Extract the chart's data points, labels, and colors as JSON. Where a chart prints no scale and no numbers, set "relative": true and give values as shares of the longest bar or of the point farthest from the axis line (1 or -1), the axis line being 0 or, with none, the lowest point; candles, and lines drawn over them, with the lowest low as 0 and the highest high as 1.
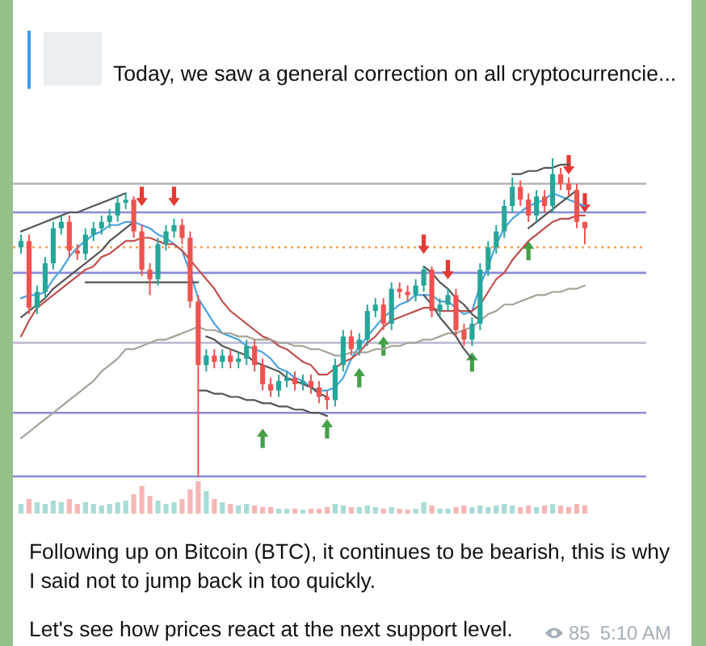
{
  "chart_data": [
    {
      "type": "candlestick",
      "subtitle": "Today, we saw a general correction on all cryptocurrencie...",
      "annotations": [
        "Following up on Bitcoin (BTC), it continues to be bearish, this is why I said not to jump back in too quickly.",
        "Let's see how prices react at the next support level.",
        "85",
        "5:10 AM"
      ],
      "relative": true,
      "categories": [
        null,
        null,
        null,
        null,
        null,
        null,
        null,
        null,
        null,
        null,
        null,
        null,
        null,
        null,
        null,
        null,
        null,
        null,
        null,
        null,
        null,
        null,
        null,
        null,
        null,
        null,
        null,
        null,
        null,
        null,
        null,
        null,
        null,
        null,
        null,
        null,
        null,
        null,
        null,
        null,
        null,
        null,
        null,
        null,
        null,
        null,
        null,
        null,
        null,
        null,
        null,
        null,
        null,
        null,
        null,
        null,
        null,
        null,
        null,
        null,
        null,
        null,
        null,
        null,
        null,
        null,
        null,
        null,
        null,
        null,
        null
      ],
      "ohlc": [
        [
          0.72,
          0.76,
          0.7,
          0.74
        ],
        [
          0.74,
          0.76,
          0.51,
          0.53
        ],
        [
          0.53,
          0.6,
          0.51,
          0.58
        ],
        [
          0.58,
          0.69,
          0.56,
          0.67
        ],
        [
          0.67,
          0.8,
          0.65,
          0.78
        ],
        [
          0.78,
          0.82,
          0.76,
          0.8
        ],
        [
          0.8,
          0.82,
          0.69,
          0.71
        ],
        [
          0.71,
          0.73,
          0.68,
          0.7
        ],
        [
          0.7,
          0.78,
          0.68,
          0.76
        ],
        [
          0.76,
          0.8,
          0.74,
          0.78
        ],
        [
          0.78,
          0.82,
          0.76,
          0.8
        ],
        [
          0.8,
          0.84,
          0.78,
          0.82
        ],
        [
          0.82,
          0.88,
          0.8,
          0.86
        ],
        [
          0.86,
          0.89,
          0.84,
          0.87
        ],
        [
          0.87,
          0.88,
          0.75,
          0.77
        ],
        [
          0.77,
          0.79,
          0.63,
          0.65
        ],
        [
          0.65,
          0.67,
          0.57,
          0.62
        ],
        [
          0.62,
          0.75,
          0.6,
          0.73
        ],
        [
          0.73,
          0.79,
          0.71,
          0.77
        ],
        [
          0.77,
          0.81,
          0.75,
          0.79
        ],
        [
          0.79,
          0.81,
          0.73,
          0.75
        ],
        [
          0.75,
          0.77,
          0.53,
          0.55
        ],
        [
          0.55,
          0.57,
          0.0,
          0.35
        ],
        [
          0.35,
          0.4,
          0.33,
          0.38
        ],
        [
          0.38,
          0.4,
          0.34,
          0.36
        ],
        [
          0.36,
          0.4,
          0.34,
          0.38
        ],
        [
          0.38,
          0.4,
          0.34,
          0.36
        ],
        [
          0.36,
          0.39,
          0.34,
          0.37
        ],
        [
          0.37,
          0.43,
          0.35,
          0.41
        ],
        [
          0.41,
          0.43,
          0.33,
          0.35
        ],
        [
          0.35,
          0.37,
          0.27,
          0.29
        ],
        [
          0.29,
          0.31,
          0.25,
          0.27
        ],
        [
          0.27,
          0.32,
          0.25,
          0.3
        ],
        [
          0.3,
          0.33,
          0.28,
          0.31
        ],
        [
          0.31,
          0.33,
          0.27,
          0.29
        ],
        [
          0.29,
          0.32,
          0.27,
          0.3
        ],
        [
          0.3,
          0.32,
          0.26,
          0.28
        ],
        [
          0.28,
          0.3,
          0.23,
          0.25
        ],
        [
          0.25,
          0.27,
          0.21,
          0.24
        ],
        [
          0.24,
          0.37,
          0.22,
          0.35
        ],
        [
          0.35,
          0.46,
          0.33,
          0.44
        ],
        [
          0.44,
          0.46,
          0.38,
          0.4
        ],
        [
          0.4,
          0.45,
          0.38,
          0.43
        ],
        [
          0.43,
          0.54,
          0.41,
          0.52
        ],
        [
          0.52,
          0.56,
          0.5,
          0.54
        ],
        [
          0.54,
          0.56,
          0.46,
          0.48
        ],
        [
          0.48,
          0.61,
          0.46,
          0.59
        ],
        [
          0.59,
          0.61,
          0.56,
          0.58
        ],
        [
          0.58,
          0.6,
          0.55,
          0.57
        ],
        [
          0.57,
          0.62,
          0.55,
          0.6
        ],
        [
          0.6,
          0.66,
          0.58,
          0.65
        ],
        [
          0.65,
          0.66,
          0.5,
          0.52
        ],
        [
          0.52,
          0.56,
          0.5,
          0.54
        ],
        [
          0.54,
          0.59,
          0.52,
          0.57
        ],
        [
          0.57,
          0.59,
          0.44,
          0.46
        ],
        [
          0.46,
          0.48,
          0.41,
          0.43
        ],
        [
          0.43,
          0.5,
          0.41,
          0.48
        ],
        [
          0.48,
          0.67,
          0.46,
          0.65
        ],
        [
          0.65,
          0.74,
          0.63,
          0.72
        ],
        [
          0.72,
          0.79,
          0.7,
          0.77
        ],
        [
          0.77,
          0.87,
          0.75,
          0.85
        ],
        [
          0.85,
          0.94,
          0.83,
          0.91
        ],
        [
          0.91,
          0.93,
          0.85,
          0.87
        ],
        [
          0.87,
          0.89,
          0.8,
          0.82
        ],
        [
          0.82,
          0.9,
          0.8,
          0.88
        ],
        [
          0.88,
          0.9,
          0.83,
          0.85
        ],
        [
          0.85,
          1.0,
          0.83,
          0.95
        ],
        [
          0.95,
          0.97,
          0.9,
          0.92
        ],
        [
          0.92,
          0.94,
          0.88,
          0.9
        ],
        [
          0.9,
          0.92,
          0.78,
          0.8
        ],
        [
          0.8,
          0.8,
          0.73,
          0.78
        ]
      ],
      "colors": [
        "#26a69a",
        "#ef5350",
        "#26a69a",
        "#26a69a",
        "#26a69a",
        "#26a69a",
        "#ef5350",
        "#ef5350",
        "#26a69a",
        "#26a69a",
        "#26a69a",
        "#26a69a",
        "#26a69a",
        "#26a69a",
        "#ef5350",
        "#ef5350",
        "#ef5350",
        "#26a69a",
        "#26a69a",
        "#26a69a",
        "#ef5350",
        "#ef5350",
        "#ef5350",
        "#26a69a",
        "#ef5350",
        "#26a69a",
        "#ef5350",
        "#26a69a",
        "#26a69a",
        "#ef5350",
        "#ef5350",
        "#ef5350",
        "#26a69a",
        "#26a69a",
        "#ef5350",
        "#26a69a",
        "#ef5350",
        "#ef5350",
        "#ef5350",
        "#26a69a",
        "#26a69a",
        "#ef5350",
        "#26a69a",
        "#26a69a",
        "#26a69a",
        "#ef5350",
        "#26a69a",
        "#ef5350",
        "#ef5350",
        "#26a69a",
        "#26a69a",
        "#ef5350",
        "#26a69a",
        "#26a69a",
        "#ef5350",
        "#ef5350",
        "#26a69a",
        "#26a69a",
        "#26a69a",
        "#26a69a",
        "#26a69a",
        "#26a69a",
        "#ef5350",
        "#ef5350",
        "#26a69a",
        "#ef5350",
        "#26a69a",
        "#ef5350",
        "#ef5350",
        "#ef5350",
        "#ef5350"
      ],
      "ref_lines": [
        {
          "axis": "y",
          "value": 0.92,
          "color": "#b3b3b3"
        },
        {
          "axis": "y",
          "value": 0.83,
          "color": "#8c8ad6"
        },
        {
          "axis": "y",
          "value": 0.72,
          "color": "#f4a259",
          "line_style": "dotted"
        },
        {
          "axis": "y",
          "value": 0.64,
          "color": "#8c8ad6"
        },
        {
          "axis": "y",
          "value": 0.42,
          "color": "#b9b9cf"
        },
        {
          "axis": "y",
          "value": 0.2,
          "color": "#8c8ad6"
        },
        {
          "axis": "y",
          "value": 0,
          "color": "#8c8ad6"
        }
      ],
      "series": [
        {
          "type": "line",
          "color": "#4aa3df",
          "values": [
            0.56,
            0.57,
            0.57,
            0.58,
            0.62,
            0.65,
            0.69,
            0.72,
            0.74,
            0.76,
            0.77,
            0.79,
            0.79,
            0.8,
            0.8,
            0.79,
            0.78,
            0.76,
            0.75,
            0.73,
            0.71,
            0.64,
            0.56,
            0.52,
            0.48,
            0.45,
            0.44,
            0.43,
            0.41,
            0.4,
            0.39,
            0.37,
            0.34,
            0.33,
            0.31,
            0.3,
            0.28,
            0.27,
            0.27,
            0.28,
            0.31,
            0.37,
            0.41,
            0.44,
            0.47,
            0.5,
            0.52,
            0.54,
            0.55,
            0.57,
            0.57,
            0.57,
            0.55,
            0.55,
            0.53,
            0.51,
            0.52,
            0.6,
            0.66,
            0.73,
            0.78,
            0.81,
            0.83,
            0.85,
            0.86,
            0.87,
            0.89,
            0.88,
            0.87,
            0.86,
            0.85
          ]
        },
        {
          "type": "line",
          "color": "#c0504d",
          "values": [
            0.44,
            0.49,
            0.53,
            0.55,
            0.57,
            0.59,
            0.61,
            0.63,
            0.65,
            0.66,
            0.69,
            0.7,
            0.72,
            0.74,
            0.74,
            0.75,
            0.75,
            0.74,
            0.73,
            0.73,
            0.71,
            0.68,
            0.65,
            0.62,
            0.59,
            0.55,
            0.52,
            0.5,
            0.48,
            0.46,
            0.44,
            0.43,
            0.41,
            0.4,
            0.38,
            0.36,
            0.35,
            0.32,
            0.32,
            0.34,
            0.36,
            0.37,
            0.39,
            0.42,
            0.44,
            0.47,
            0.49,
            0.5,
            0.51,
            0.52,
            0.53,
            0.53,
            0.52,
            0.52,
            0.52,
            0.52,
            0.52,
            0.54,
            0.58,
            0.62,
            0.64,
            0.68,
            0.71,
            0.74,
            0.76,
            0.78,
            0.8,
            0.81,
            0.81,
            0.82,
            0.82
          ]
        },
        {
          "type": "line",
          "color": "#a3a398",
          "values": [
            0.12,
            0.14,
            0.16,
            0.18,
            0.2,
            0.22,
            0.24,
            0.26,
            0.28,
            0.3,
            0.33,
            0.35,
            0.37,
            0.4,
            0.4,
            0.41,
            0.42,
            0.43,
            0.43,
            0.44,
            0.45,
            0.46,
            0.47,
            0.46,
            0.46,
            0.45,
            0.45,
            0.44,
            0.44,
            0.43,
            0.43,
            0.43,
            0.42,
            0.42,
            0.41,
            0.41,
            0.4,
            0.4,
            0.39,
            0.38,
            0.38,
            0.39,
            0.39,
            0.39,
            0.4,
            0.4,
            0.41,
            0.41,
            0.42,
            0.42,
            0.43,
            0.43,
            0.44,
            0.45,
            0.45,
            0.46,
            0.47,
            0.49,
            0.51,
            0.52,
            0.54,
            0.54,
            0.55,
            0.56,
            0.57,
            0.57,
            0.58,
            0.58,
            0.59,
            0.59,
            0.6
          ]
        },
        {
          "type": "line",
          "color": "#555555",
          "values": [
            0.77,
            0.78,
            0.79,
            0.8,
            0.81,
            0.82,
            0.83,
            0.83,
            0.84,
            0.85,
            0.86,
            0.87,
            0.88,
            0.89,
            null,
            null,
            null,
            null,
            null,
            null,
            null,
            null,
            null,
            null,
            null,
            null,
            null,
            null,
            null,
            null,
            null,
            null,
            null,
            null,
            null,
            null,
            null,
            null,
            null,
            null,
            null,
            null,
            null,
            null,
            null,
            null,
            null,
            null,
            null,
            null,
            null,
            null,
            null,
            null,
            null,
            null,
            null,
            null,
            null,
            null,
            null,
            null,
            null,
            null,
            null,
            null,
            null,
            null,
            null,
            null,
            null
          ]
        },
        {
          "type": "line",
          "color": "#555555",
          "values": [
            0.5,
            0.52,
            0.54,
            0.56,
            0.59,
            0.61,
            0.63,
            0.65,
            0.67,
            0.69,
            0.71,
            0.74,
            0.76,
            0.78,
            0.8,
            null,
            null,
            null,
            null,
            null,
            null,
            null,
            null,
            null,
            null,
            null,
            null,
            null,
            null,
            null,
            null,
            null,
            null,
            null,
            null,
            null,
            null,
            null,
            null,
            null,
            null,
            null,
            null,
            null,
            null,
            null,
            null,
            null,
            null,
            null,
            null,
            null,
            null,
            null,
            null,
            null,
            null,
            null,
            null,
            null,
            null,
            null,
            null,
            null,
            null,
            null,
            null,
            null,
            null,
            null,
            null
          ]
        },
        {
          "type": "line",
          "color": "#555555",
          "values": [
            null,
            null,
            null,
            null,
            null,
            null,
            null,
            null,
            0.61,
            0.61,
            0.61,
            0.61,
            0.61,
            0.61,
            0.61,
            0.61,
            0.61,
            0.61,
            0.61,
            0.61,
            0.61,
            0.61,
            0.61,
            null,
            null,
            null,
            null,
            null,
            null,
            null,
            null,
            null,
            null,
            null,
            null,
            null,
            null,
            null,
            null,
            null,
            null,
            null,
            null,
            null,
            null,
            null,
            null,
            null,
            null,
            null,
            null,
            null,
            null,
            null,
            null,
            null,
            null,
            null,
            null,
            null,
            null,
            null,
            null,
            null,
            null,
            null,
            null,
            null,
            null,
            null,
            null
          ]
        },
        {
          "type": "line",
          "color": "#555555",
          "values": [
            null,
            null,
            null,
            null,
            null,
            null,
            null,
            null,
            null,
            null,
            null,
            null,
            null,
            null,
            null,
            null,
            null,
            null,
            null,
            null,
            null,
            null,
            null,
            0.44,
            0.43,
            0.41,
            0.4,
            0.39,
            0.38,
            0.36,
            0.35,
            0.34,
            0.33,
            0.31,
            0.3,
            0.29,
            0.28,
            0.26,
            0.25,
            null,
            null,
            null,
            null,
            null,
            null,
            null,
            null,
            null,
            null,
            null,
            null,
            null,
            null,
            null,
            null,
            null,
            null,
            null,
            null,
            null,
            null,
            null,
            null,
            null,
            null,
            null,
            null,
            null,
            null,
            null,
            null
          ]
        },
        {
          "type": "line",
          "color": "#555555",
          "values": [
            null,
            null,
            null,
            null,
            null,
            null,
            null,
            null,
            null,
            null,
            null,
            null,
            null,
            null,
            null,
            null,
            null,
            null,
            null,
            null,
            null,
            null,
            0.27,
            0.27,
            0.26,
            0.26,
            0.25,
            0.25,
            0.24,
            0.24,
            0.23,
            0.23,
            0.22,
            0.22,
            0.21,
            0.21,
            0.2,
            0.2,
            0.19,
            null,
            null,
            null,
            null,
            null,
            null,
            null,
            null,
            null,
            null,
            null,
            null,
            null,
            null,
            null,
            null,
            null,
            null,
            null,
            null,
            null,
            null,
            null,
            null,
            null,
            null,
            null,
            null,
            null,
            null,
            null,
            null
          ]
        },
        {
          "type": "line",
          "color": "#555555",
          "values": [
            null,
            null,
            null,
            null,
            null,
            null,
            null,
            null,
            null,
            null,
            null,
            null,
            null,
            null,
            null,
            null,
            null,
            null,
            null,
            null,
            null,
            null,
            null,
            null,
            null,
            null,
            null,
            null,
            null,
            null,
            null,
            null,
            null,
            null,
            null,
            null,
            null,
            null,
            null,
            null,
            null,
            null,
            null,
            null,
            null,
            null,
            null,
            null,
            null,
            null,
            0.66,
            0.64,
            0.61,
            0.59,
            0.56,
            0.54,
            0.51,
            0.49,
            null,
            null,
            null,
            null,
            null,
            null,
            null,
            null,
            null,
            null,
            null,
            null,
            null
          ]
        },
        {
          "type": "line",
          "color": "#555555",
          "values": [
            null,
            null,
            null,
            null,
            null,
            null,
            null,
            null,
            null,
            null,
            null,
            null,
            null,
            null,
            null,
            null,
            null,
            null,
            null,
            null,
            null,
            null,
            null,
            null,
            null,
            null,
            null,
            null,
            null,
            null,
            null,
            null,
            null,
            null,
            null,
            null,
            null,
            null,
            null,
            null,
            null,
            null,
            null,
            null,
            null,
            null,
            null,
            null,
            null,
            null,
            0.57,
            0.54,
            0.5,
            0.47,
            0.44,
            0.4,
            0.37,
            null,
            null,
            null,
            null,
            null,
            null,
            null,
            null,
            null,
            null,
            null,
            null,
            null,
            null
          ]
        },
        {
          "type": "line",
          "color": "#555555",
          "values": [
            null,
            null,
            null,
            null,
            null,
            null,
            null,
            null,
            null,
            null,
            null,
            null,
            null,
            null,
            null,
            null,
            null,
            null,
            null,
            null,
            null,
            null,
            null,
            null,
            null,
            null,
            null,
            null,
            null,
            null,
            null,
            null,
            null,
            null,
            null,
            null,
            null,
            null,
            null,
            null,
            null,
            null,
            null,
            null,
            null,
            null,
            null,
            null,
            null,
            null,
            null,
            null,
            null,
            null,
            null,
            null,
            null,
            null,
            null,
            null,
            null,
            0.95,
            0.95,
            0.96,
            0.96,
            0.97,
            0.97,
            0.98,
            0.98,
            null,
            null
          ]
        },
        {
          "type": "line",
          "color": "#555555",
          "values": [
            null,
            null,
            null,
            null,
            null,
            null,
            null,
            null,
            null,
            null,
            null,
            null,
            null,
            null,
            null,
            null,
            null,
            null,
            null,
            null,
            null,
            null,
            null,
            null,
            null,
            null,
            null,
            null,
            null,
            null,
            null,
            null,
            null,
            null,
            null,
            null,
            null,
            null,
            null,
            null,
            null,
            null,
            null,
            null,
            null,
            null,
            null,
            null,
            null,
            null,
            null,
            null,
            null,
            null,
            null,
            null,
            null,
            null,
            null,
            null,
            null,
            null,
            null,
            0.78,
            0.8,
            0.82,
            0.84,
            0.86,
            0.88,
            0.9,
            null
          ]
        },
        {
          "type": "scatter",
          "color": "#e53935",
          "values": [
            null,
            null,
            null,
            null,
            null,
            null,
            null,
            null,
            null,
            null,
            null,
            null,
            null,
            null,
            null,
            0.88,
            null,
            null,
            null,
            0.88,
            null,
            null,
            null,
            null,
            null,
            null,
            null,
            null,
            null,
            null,
            null,
            null,
            null,
            null,
            null,
            null,
            null,
            null,
            null,
            null,
            null,
            null,
            null,
            null,
            null,
            null,
            null,
            null,
            null,
            null,
            0.73,
            null,
            null,
            0.65,
            null,
            null,
            null,
            null,
            null,
            null,
            null,
            null,
            null,
            null,
            null,
            null,
            null,
            null,
            0.98,
            null,
            0.86
          ]
        },
        {
          "type": "scatter",
          "color": "#43a047",
          "values": [
            null,
            null,
            null,
            null,
            null,
            null,
            null,
            null,
            null,
            null,
            null,
            null,
            null,
            null,
            null,
            null,
            null,
            null,
            null,
            null,
            null,
            null,
            null,
            null,
            null,
            null,
            null,
            null,
            null,
            null,
            0.12,
            null,
            null,
            null,
            null,
            null,
            null,
            null,
            0.15,
            null,
            null,
            null,
            0.31,
            null,
            null,
            0.41,
            null,
            null,
            null,
            null,
            null,
            null,
            null,
            null,
            null,
            null,
            0.36,
            null,
            null,
            null,
            null,
            null,
            null,
            0.71,
            null,
            null,
            null,
            null,
            null,
            null,
            null
          ]
        }
      ]
    },
    {
      "type": "bar",
      "relative": true,
      "categories": [
        null,
        null,
        null,
        null,
        null,
        null,
        null,
        null,
        null,
        null,
        null,
        null,
        null,
        null,
        null,
        null,
        null,
        null,
        null,
        null,
        null,
        null,
        null,
        null,
        null,
        null,
        null,
        null,
        null,
        null,
        null,
        null,
        null,
        null,
        null,
        null,
        null,
        null,
        null,
        null,
        null,
        null,
        null,
        null,
        null,
        null,
        null,
        null,
        null,
        null,
        null,
        null,
        null,
        null,
        null,
        null,
        null,
        null,
        null,
        null,
        null,
        null,
        null,
        null,
        null,
        null,
        null,
        null,
        null,
        null,
        null
      ],
      "values": [
        0.3,
        0.45,
        0.35,
        0.3,
        0.4,
        0.35,
        0.45,
        0.3,
        0.35,
        0.3,
        0.25,
        0.3,
        0.35,
        0.4,
        0.6,
        0.85,
        0.55,
        0.4,
        0.3,
        0.35,
        0.45,
        0.75,
        1.0,
        0.7,
        0.45,
        0.35,
        0.3,
        0.25,
        0.3,
        0.25,
        0.2,
        0.2,
        0.15,
        0.15,
        0.15,
        0.12,
        0.15,
        0.15,
        0.2,
        0.3,
        0.25,
        0.2,
        0.2,
        0.25,
        0.2,
        0.15,
        0.2,
        0.15,
        0.12,
        0.15,
        0.35,
        0.25,
        0.15,
        0.15,
        0.2,
        0.25,
        0.2,
        0.25,
        0.2,
        0.25,
        0.3,
        0.25,
        0.2,
        0.25,
        0.2,
        0.25,
        0.3,
        0.25,
        0.2,
        0.3,
        0.25
      ],
      "colors": [
        "#a8dcd6",
        "#f7b6b4",
        "#a8dcd6",
        "#a8dcd6",
        "#a8dcd6",
        "#a8dcd6",
        "#f7b6b4",
        "#f7b6b4",
        "#a8dcd6",
        "#a8dcd6",
        "#a8dcd6",
        "#a8dcd6",
        "#a8dcd6",
        "#a8dcd6",
        "#f7b6b4",
        "#f7b6b4",
        "#f7b6b4",
        "#a8dcd6",
        "#a8dcd6",
        "#a8dcd6",
        "#f7b6b4",
        "#f7b6b4",
        "#f7b6b4",
        "#a8dcd6",
        "#f7b6b4",
        "#a8dcd6",
        "#f7b6b4",
        "#a8dcd6",
        "#a8dcd6",
        "#f7b6b4",
        "#f7b6b4",
        "#f7b6b4",
        "#a8dcd6",
        "#a8dcd6",
        "#f7b6b4",
        "#a8dcd6",
        "#f7b6b4",
        "#f7b6b4",
        "#f7b6b4",
        "#a8dcd6",
        "#a8dcd6",
        "#f7b6b4",
        "#a8dcd6",
        "#a8dcd6",
        "#a8dcd6",
        "#f7b6b4",
        "#a8dcd6",
        "#f7b6b4",
        "#f7b6b4",
        "#a8dcd6",
        "#a8dcd6",
        "#f7b6b4",
        "#a8dcd6",
        "#a8dcd6",
        "#f7b6b4",
        "#f7b6b4",
        "#a8dcd6",
        "#a8dcd6",
        "#a8dcd6",
        "#a8dcd6",
        "#a8dcd6",
        "#a8dcd6",
        "#f7b6b4",
        "#f7b6b4",
        "#a8dcd6",
        "#f7b6b4",
        "#a8dcd6",
        "#f7b6b4",
        "#f7b6b4",
        "#f7b6b4",
        "#f7b6b4"
      ]
    }
  ]
}
